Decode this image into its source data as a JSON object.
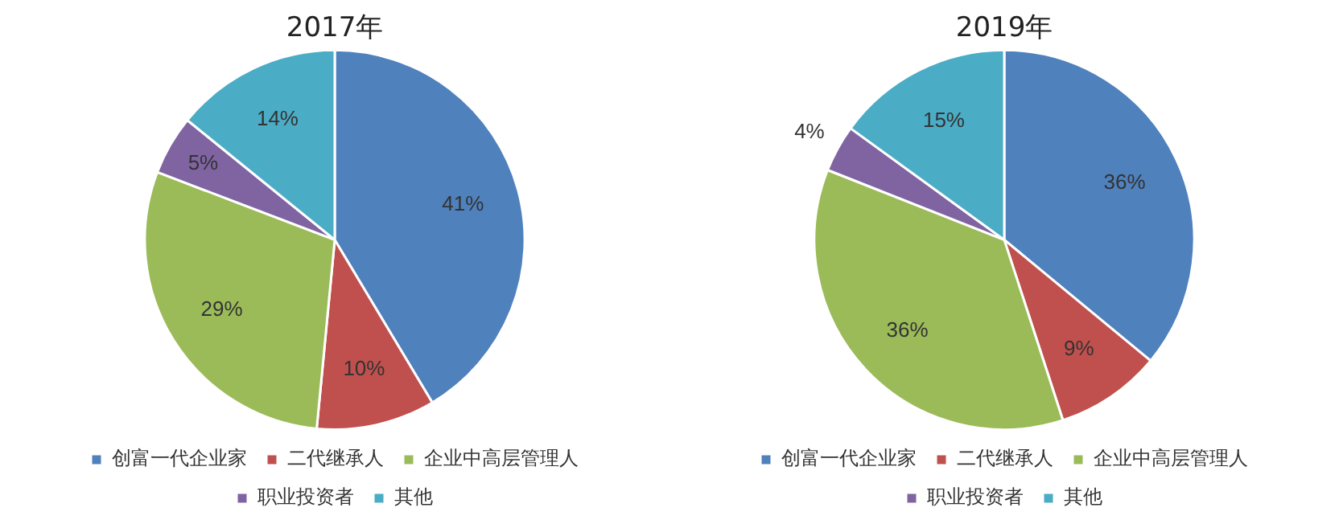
{
  "chart_data": [
    {
      "type": "pie",
      "title": "2017年",
      "categories": [
        "创富一代企业家",
        "二代继承人",
        "企业中高层管理人",
        "职业投资者",
        "其他"
      ],
      "values": [
        41,
        10,
        29,
        5,
        14
      ],
      "colors": [
        "#4f81bd",
        "#c0504d",
        "#9bbb59",
        "#8064a2",
        "#4bacc6"
      ],
      "value_labels": [
        "41%",
        "10%",
        "29%",
        "5%",
        "14%"
      ],
      "legend": "bottom"
    },
    {
      "type": "pie",
      "title": "2019年",
      "categories": [
        "创富一代企业家",
        "二代继承人",
        "企业中高层管理人",
        "职业投资者",
        "其他"
      ],
      "values": [
        36,
        9,
        36,
        4,
        15
      ],
      "colors": [
        "#4f81bd",
        "#c0504d",
        "#9bbb59",
        "#8064a2",
        "#4bacc6"
      ],
      "value_labels": [
        "36%",
        "9%",
        "36%",
        "4%",
        "15%"
      ],
      "legend": "bottom"
    }
  ]
}
